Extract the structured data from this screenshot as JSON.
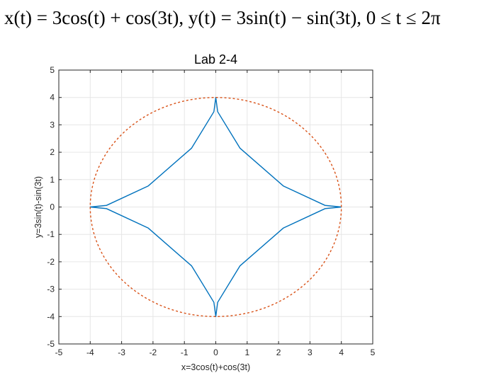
{
  "equation": {
    "text": "x(t) = 3cos(t) + cos(3t),  y(t) = 3sin(t) − sin(3t),  0 ≤ t ≤ 2π"
  },
  "chart_data": {
    "type": "line",
    "title": "Lab 2-4",
    "xlabel": "x=3cos(t)+cos(3t)",
    "ylabel": "y=3sin(t)-sin(3t)",
    "xlim": [
      -5,
      5
    ],
    "ylim": [
      -5,
      5
    ],
    "xticks": [
      "-5",
      "-4",
      "-3",
      "-2",
      "-1",
      "0",
      "1",
      "2",
      "3",
      "4",
      "5"
    ],
    "yticks": [
      "-5",
      "-4",
      "-3",
      "-2",
      "-1",
      "0",
      "1",
      "2",
      "3",
      "4",
      "5"
    ],
    "grid": true,
    "series": [
      {
        "style": "solid",
        "color": "#0072BD",
        "x": [
          4.0,
          3.48,
          2.15,
          0.77,
          0.06,
          0.0,
          -0.06,
          -0.77,
          -2.15,
          -3.48,
          -4.0,
          -3.48,
          -2.15,
          -0.77,
          -0.06,
          0.0,
          0.06,
          0.77,
          2.15,
          3.48,
          4.0
        ],
        "y": [
          0.0,
          0.06,
          0.77,
          2.15,
          3.48,
          4.0,
          3.48,
          2.15,
          0.77,
          0.06,
          0.0,
          -0.06,
          -0.77,
          -2.15,
          -3.48,
          -4.0,
          -3.48,
          -2.15,
          -0.77,
          -0.06,
          0.0
        ]
      },
      {
        "style": "dashed",
        "color": "#D95319",
        "circle_radius": 4
      }
    ]
  }
}
